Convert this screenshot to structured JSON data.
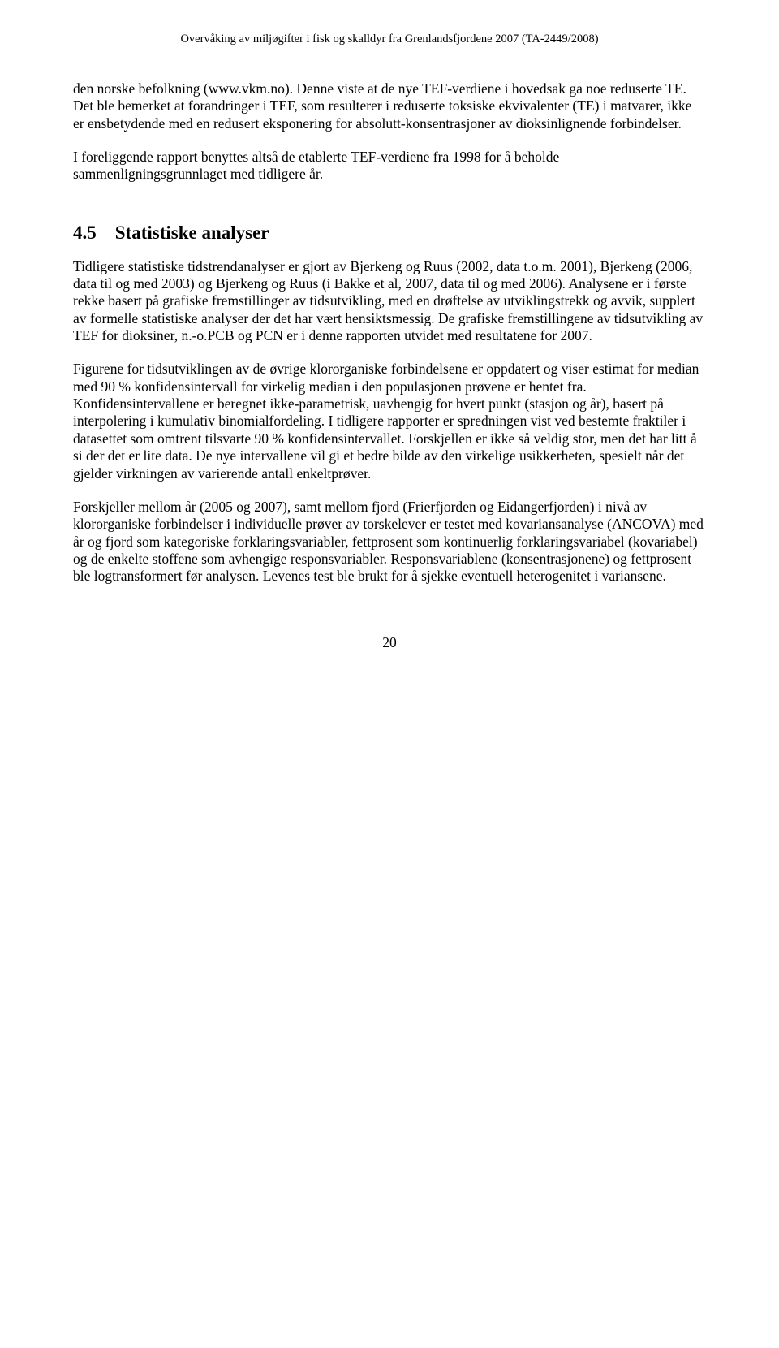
{
  "header": "Overvåking av miljøgifter i fisk og skalldyr fra Grenlandsfjordene 2007 (TA-2449/2008)",
  "para1": "den norske befolkning (www.vkm.no). Denne viste at de nye TEF-verdiene i hovedsak ga noe reduserte TE. Det ble bemerket at forandringer i TEF, som resulterer i reduserte toksiske ekvivalenter (TE) i matvarer, ikke er ensbetydende med en redusert eksponering for absolutt-konsentrasjoner av dioksinlignende forbindelser.",
  "para2": "I foreliggende rapport benyttes altså de etablerte TEF-verdiene fra 1998 for å beholde sammenligningsgrunnlaget med tidligere år.",
  "sectionHeading": "4.5 Statistiske analyser",
  "para3": "Tidligere statistiske tidstrendanalyser er gjort av Bjerkeng og Ruus (2002, data t.o.m. 2001), Bjerkeng (2006, data til og med 2003) og Bjerkeng og Ruus (i Bakke et al, 2007, data til og med 2006). Analysene er i første rekke basert på grafiske fremstillinger av tidsutvikling, med en drøftelse av utviklingstrekk og avvik, supplert av formelle statistiske analyser der det har vært hensiktsmessig. De grafiske fremstillingene av tidsutvikling av TEF for dioksiner, n.-o.PCB og PCN er i denne rapporten utvidet med resultatene for 2007.",
  "para4": "Figurene for tidsutviklingen av de øvrige klororganiske forbindelsene er oppdatert og viser estimat for median med 90 % konfidensintervall for virkelig median i den populasjonen prøvene er hentet fra. Konfidensintervallene er beregnet ikke-parametrisk, uavhengig for hvert punkt (stasjon og år), basert på interpolering i kumulativ binomialfordeling. I tidligere rapporter er spredningen vist ved bestemte fraktiler i datasettet som omtrent tilsvarte 90 % konfidensintervallet. Forskjellen er ikke så veldig stor, men det har litt å si der det er lite data. De nye intervallene vil gi et bedre bilde av den virkelige usikkerheten, spesielt når det gjelder virkningen av varierende antall enkeltprøver.",
  "para5": "Forskjeller mellom år (2005 og 2007), samt mellom fjord (Frierfjorden og Eidangerfjorden) i nivå av klororganiske forbindelser i individuelle prøver av torskelever er testet med kovariansanalyse (ANCOVA) med år og fjord som kategoriske forklaringsvariabler, fettprosent som kontinuerlig forklaringsvariabel (kovariabel) og de enkelte stoffene som avhengige responsvariabler. Responsvariablene (konsentrasjonene) og fettprosent ble logtransformert før analysen. Levenes test ble brukt for å sjekke eventuell heterogenitet i variansene.",
  "pageNumber": "20"
}
